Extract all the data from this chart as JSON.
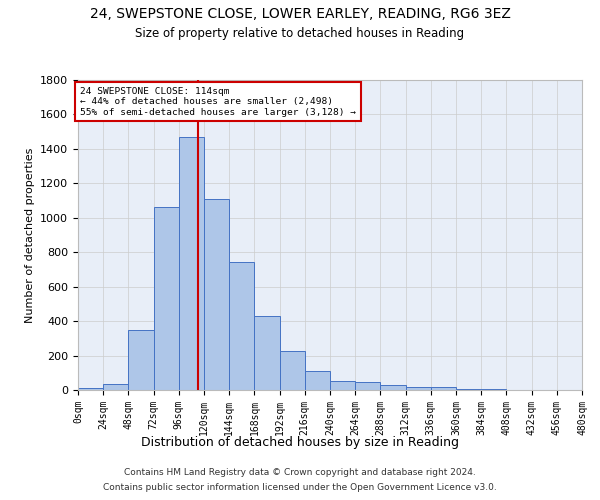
{
  "title_line1": "24, SWEPSTONE CLOSE, LOWER EARLEY, READING, RG6 3EZ",
  "title_line2": "Size of property relative to detached houses in Reading",
  "xlabel": "Distribution of detached houses by size in Reading",
  "ylabel": "Number of detached properties",
  "footer_line1": "Contains HM Land Registry data © Crown copyright and database right 2024.",
  "footer_line2": "Contains public sector information licensed under the Open Government Licence v3.0.",
  "bin_edges": [
    0,
    24,
    48,
    72,
    96,
    120,
    144,
    168,
    192,
    216,
    240,
    264,
    288,
    312,
    336,
    360,
    384,
    408,
    432,
    456,
    480
  ],
  "bar_heights": [
    10,
    35,
    350,
    1060,
    1470,
    1110,
    745,
    430,
    225,
    110,
    50,
    45,
    30,
    20,
    20,
    5,
    3,
    2,
    1,
    1
  ],
  "bar_color": "#aec6e8",
  "bar_edge_color": "#4472c4",
  "property_size": 114,
  "annotation_text_line1": "24 SWEPSTONE CLOSE: 114sqm",
  "annotation_text_line2": "← 44% of detached houses are smaller (2,498)",
  "annotation_text_line3": "55% of semi-detached houses are larger (3,128) →",
  "vline_color": "#cc0000",
  "annotation_box_edge_color": "#cc0000",
  "ylim": [
    0,
    1800
  ],
  "yticks": [
    0,
    200,
    400,
    600,
    800,
    1000,
    1200,
    1400,
    1600,
    1800
  ],
  "background_color": "#ffffff",
  "grid_color": "#cccccc",
  "axes_facecolor": "#e8eef8"
}
